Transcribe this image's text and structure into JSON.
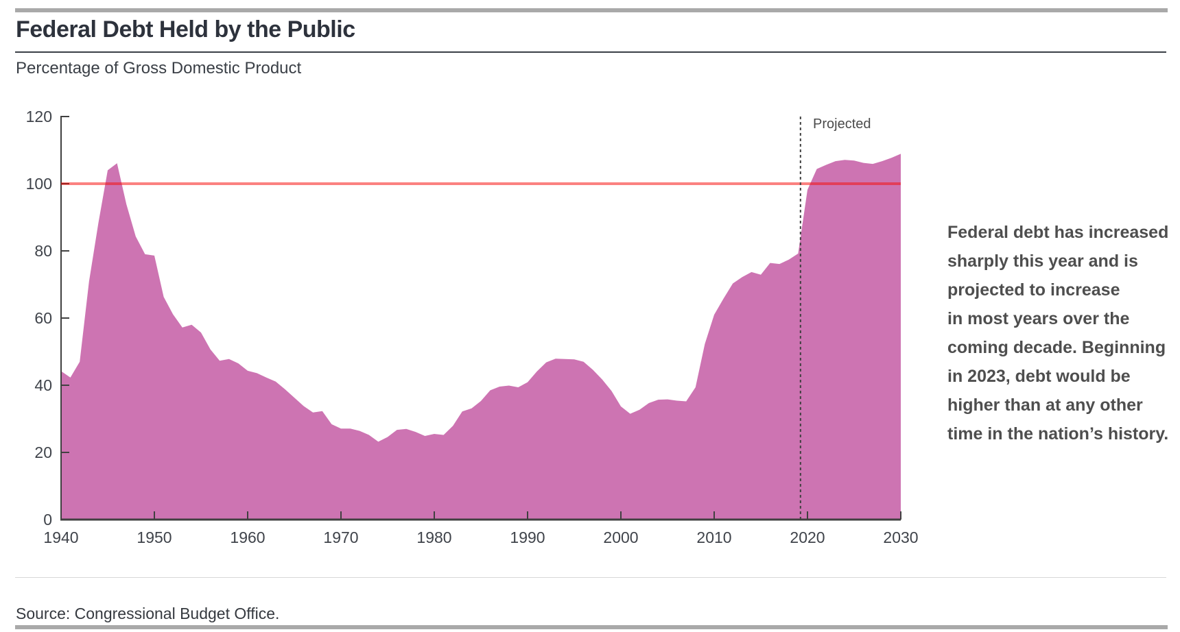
{
  "page": {
    "title": "Federal Debt Held by the Public",
    "subtitle": "Percentage of Gross Domestic Product",
    "source": "Source: Congressional Budget Office."
  },
  "annotation": {
    "lines": [
      "Federal debt has increased",
      "sharply this year and is",
      "projected to increase",
      "in most years over the",
      "coming decade. Beginning",
      "in 2023, debt would be",
      "higher than at any other",
      "time in the nation’s history."
    ]
  },
  "chart_data": {
    "type": "area",
    "title": "Federal Debt Held by the Public",
    "ylabel": "Percentage of Gross Domestic Product",
    "xlabel": "",
    "xlim": [
      1940,
      2030
    ],
    "ylim": [
      0,
      120
    ],
    "xticks": [
      1940,
      1950,
      1960,
      1970,
      1980,
      1990,
      2000,
      2010,
      2020,
      2030
    ],
    "yticks": [
      0,
      20,
      40,
      60,
      80,
      100,
      120
    ],
    "grid": false,
    "legend": "none",
    "series": [
      {
        "name": "Federal debt held by the public (% of GDP)",
        "x": [
          1940,
          1941,
          1942,
          1943,
          1944,
          1945,
          1946,
          1947,
          1948,
          1949,
          1950,
          1951,
          1952,
          1953,
          1954,
          1955,
          1956,
          1957,
          1958,
          1959,
          1960,
          1961,
          1962,
          1963,
          1964,
          1965,
          1966,
          1967,
          1968,
          1969,
          1970,
          1971,
          1972,
          1973,
          1974,
          1975,
          1976,
          1977,
          1978,
          1979,
          1980,
          1981,
          1982,
          1983,
          1984,
          1985,
          1986,
          1987,
          1988,
          1989,
          1990,
          1991,
          1992,
          1993,
          1994,
          1995,
          1996,
          1997,
          1998,
          1999,
          2000,
          2001,
          2002,
          2003,
          2004,
          2005,
          2006,
          2007,
          2008,
          2009,
          2010,
          2011,
          2012,
          2013,
          2014,
          2015,
          2016,
          2017,
          2018,
          2019,
          2020,
          2021,
          2022,
          2023,
          2024,
          2025,
          2026,
          2027,
          2028,
          2029,
          2030
        ],
        "values": [
          44.2,
          42.3,
          47.0,
          70.9,
          88.3,
          104.0,
          106.1,
          93.9,
          84.3,
          79.0,
          78.6,
          66.3,
          61.1,
          57.2,
          58.0,
          55.7,
          50.7,
          47.3,
          47.8,
          46.5,
          44.3,
          43.6,
          42.3,
          41.1,
          38.8,
          36.3,
          33.8,
          31.9,
          32.3,
          28.4,
          27.1,
          27.1,
          26.4,
          25.2,
          23.2,
          24.6,
          26.7,
          27.0,
          26.1,
          24.9,
          25.5,
          25.2,
          27.9,
          32.2,
          33.1,
          35.3,
          38.5,
          39.6,
          39.9,
          39.4,
          40.9,
          44.1,
          46.8,
          47.9,
          47.8,
          47.7,
          47.0,
          44.6,
          41.7,
          38.3,
          33.7,
          31.5,
          32.7,
          34.7,
          35.7,
          35.8,
          35.4,
          35.2,
          39.4,
          52.3,
          61.0,
          65.8,
          70.3,
          72.2,
          73.7,
          72.9,
          76.4,
          76.1,
          77.4,
          79.2,
          98.2,
          104.4,
          105.6,
          106.7,
          107.1,
          106.9,
          106.2,
          105.9,
          106.7,
          107.7,
          108.9
        ]
      }
    ],
    "reference_line": {
      "y": 100
    },
    "projection_divider": {
      "x": 2019.25,
      "label": "Projected"
    },
    "colors": {
      "area_fill": "#cd74b2",
      "reference_line_rgba": "rgba(247,10,6,0.51)",
      "axis": "#404040",
      "tick_label": "#3f434a",
      "divider_dotted": "#3f3f3f"
    }
  }
}
